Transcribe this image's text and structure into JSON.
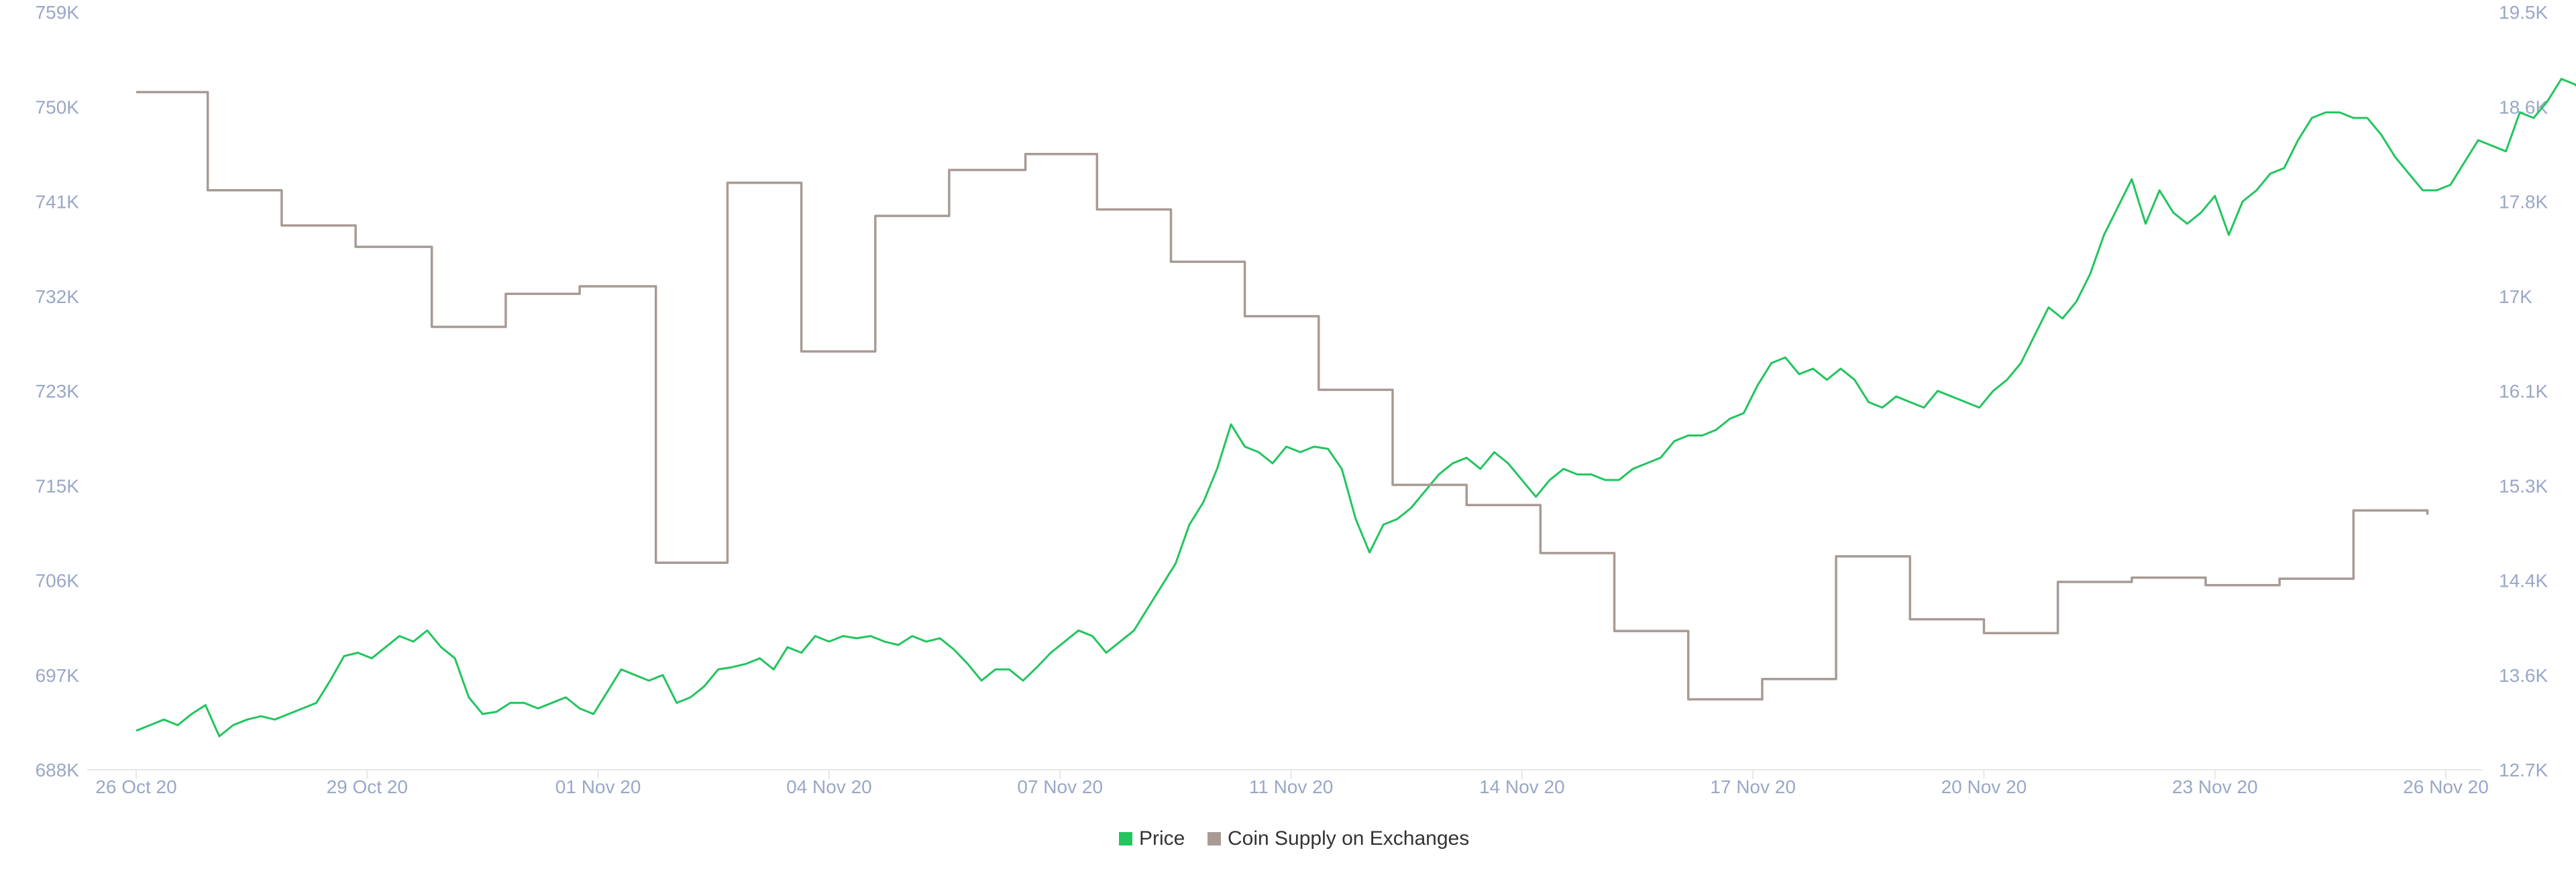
{
  "chart_data": {
    "type": "line",
    "title": "",
    "xlabel": "",
    "x_ticks": [
      "26 Oct 20",
      "29 Oct 20",
      "01 Nov 20",
      "04 Nov 20",
      "07 Nov 20",
      "11 Nov 20",
      "14 Nov 20",
      "17 Nov 20",
      "20 Nov 20",
      "23 Nov 20",
      "26 Nov 20"
    ],
    "y_left": {
      "label": "",
      "range": [
        688000,
        759000
      ],
      "ticks": [
        "688K",
        "697K",
        "706K",
        "715K",
        "723K",
        "732K",
        "741K",
        "750K",
        "759K"
      ]
    },
    "y_right": {
      "label": "",
      "range": [
        12700,
        19500
      ],
      "ticks": [
        "12.7K",
        "13.6K",
        "14.4K",
        "15.3K",
        "16.1K",
        "17K",
        "17.8K",
        "18.6K",
        "19.5K"
      ]
    },
    "grid": false,
    "legend_position": "bottom-center",
    "series": [
      {
        "name": "Price",
        "axis": "right",
        "color": "#22c55e",
        "points": [
          [
            0.0,
            13.05
          ],
          [
            0.06,
            13.1
          ],
          [
            0.12,
            13.15
          ],
          [
            0.18,
            13.1
          ],
          [
            0.24,
            13.2
          ],
          [
            0.3,
            13.28
          ],
          [
            0.36,
            13.0
          ],
          [
            0.42,
            13.1
          ],
          [
            0.48,
            13.15
          ],
          [
            0.54,
            13.18
          ],
          [
            0.6,
            13.15
          ],
          [
            0.66,
            13.2
          ],
          [
            0.72,
            13.25
          ],
          [
            0.78,
            13.3
          ],
          [
            0.84,
            13.5
          ],
          [
            0.9,
            13.72
          ],
          [
            0.96,
            13.75
          ],
          [
            1.02,
            13.7
          ],
          [
            1.08,
            13.8
          ],
          [
            1.14,
            13.9
          ],
          [
            1.2,
            13.85
          ],
          [
            1.26,
            13.95
          ],
          [
            1.32,
            13.8
          ],
          [
            1.38,
            13.7
          ],
          [
            1.44,
            13.35
          ],
          [
            1.5,
            13.2
          ],
          [
            1.56,
            13.22
          ],
          [
            1.62,
            13.3
          ],
          [
            1.68,
            13.3
          ],
          [
            1.74,
            13.25
          ],
          [
            1.8,
            13.3
          ],
          [
            1.86,
            13.35
          ],
          [
            1.92,
            13.25
          ],
          [
            1.98,
            13.2
          ],
          [
            2.04,
            13.4
          ],
          [
            2.1,
            13.6
          ],
          [
            2.16,
            13.55
          ],
          [
            2.22,
            13.5
          ],
          [
            2.28,
            13.55
          ],
          [
            2.34,
            13.3
          ],
          [
            2.4,
            13.35
          ],
          [
            2.46,
            13.45
          ],
          [
            2.52,
            13.6
          ],
          [
            2.58,
            13.62
          ],
          [
            2.64,
            13.65
          ],
          [
            2.7,
            13.7
          ],
          [
            2.76,
            13.6
          ],
          [
            2.82,
            13.8
          ],
          [
            2.88,
            13.75
          ],
          [
            2.94,
            13.9
          ],
          [
            3.0,
            13.85
          ],
          [
            3.06,
            13.9
          ],
          [
            3.12,
            13.88
          ],
          [
            3.18,
            13.9
          ],
          [
            3.24,
            13.85
          ],
          [
            3.3,
            13.82
          ],
          [
            3.36,
            13.9
          ],
          [
            3.42,
            13.85
          ],
          [
            3.48,
            13.88
          ],
          [
            3.54,
            13.78
          ],
          [
            3.6,
            13.65
          ],
          [
            3.66,
            13.5
          ],
          [
            3.72,
            13.6
          ],
          [
            3.78,
            13.6
          ],
          [
            3.84,
            13.5
          ],
          [
            3.9,
            13.62
          ],
          [
            3.96,
            13.75
          ],
          [
            4.02,
            13.85
          ],
          [
            4.08,
            13.95
          ],
          [
            4.14,
            13.9
          ],
          [
            4.2,
            13.75
          ],
          [
            4.26,
            13.85
          ],
          [
            4.32,
            13.95
          ],
          [
            4.38,
            14.15
          ],
          [
            4.44,
            14.35
          ],
          [
            4.5,
            14.55
          ],
          [
            4.56,
            14.9
          ],
          [
            4.62,
            15.1
          ],
          [
            4.68,
            15.4
          ],
          [
            4.74,
            15.8
          ],
          [
            4.8,
            15.6
          ],
          [
            4.86,
            15.55
          ],
          [
            4.92,
            15.45
          ],
          [
            4.98,
            15.6
          ],
          [
            5.04,
            15.55
          ],
          [
            5.1,
            15.6
          ],
          [
            5.16,
            15.58
          ],
          [
            5.22,
            15.4
          ],
          [
            5.28,
            14.95
          ],
          [
            5.34,
            14.65
          ],
          [
            5.4,
            14.9
          ],
          [
            5.46,
            14.95
          ],
          [
            5.52,
            15.05
          ],
          [
            5.58,
            15.2
          ],
          [
            5.64,
            15.35
          ],
          [
            5.7,
            15.45
          ],
          [
            5.76,
            15.5
          ],
          [
            5.82,
            15.4
          ],
          [
            5.88,
            15.55
          ],
          [
            5.94,
            15.45
          ],
          [
            6.0,
            15.3
          ],
          [
            6.06,
            15.15
          ],
          [
            6.12,
            15.3
          ],
          [
            6.18,
            15.4
          ],
          [
            6.24,
            15.35
          ],
          [
            6.3,
            15.35
          ],
          [
            6.36,
            15.3
          ],
          [
            6.42,
            15.3
          ],
          [
            6.48,
            15.4
          ],
          [
            6.54,
            15.45
          ],
          [
            6.6,
            15.5
          ],
          [
            6.66,
            15.65
          ],
          [
            6.72,
            15.7
          ],
          [
            6.78,
            15.7
          ],
          [
            6.84,
            15.75
          ],
          [
            6.9,
            15.85
          ],
          [
            6.96,
            15.9
          ],
          [
            7.02,
            16.15
          ],
          [
            7.08,
            16.35
          ],
          [
            7.14,
            16.4
          ],
          [
            7.2,
            16.25
          ],
          [
            7.26,
            16.3
          ],
          [
            7.32,
            16.2
          ],
          [
            7.38,
            16.3
          ],
          [
            7.44,
            16.2
          ],
          [
            7.5,
            16.0
          ],
          [
            7.56,
            15.95
          ],
          [
            7.62,
            16.05
          ],
          [
            7.68,
            16.0
          ],
          [
            7.74,
            15.95
          ],
          [
            7.8,
            16.1
          ],
          [
            7.86,
            16.05
          ],
          [
            7.92,
            16.0
          ],
          [
            7.98,
            15.95
          ],
          [
            8.04,
            16.1
          ],
          [
            8.1,
            16.2
          ],
          [
            8.16,
            16.35
          ],
          [
            8.22,
            16.6
          ],
          [
            8.28,
            16.85
          ],
          [
            8.34,
            16.75
          ],
          [
            8.4,
            16.9
          ],
          [
            8.46,
            17.15
          ],
          [
            8.52,
            17.5
          ],
          [
            8.58,
            17.75
          ],
          [
            8.64,
            18.0
          ],
          [
            8.7,
            17.6
          ],
          [
            8.76,
            17.9
          ],
          [
            8.82,
            17.7
          ],
          [
            8.88,
            17.6
          ],
          [
            8.94,
            17.7
          ],
          [
            9.0,
            17.85
          ],
          [
            9.06,
            17.5
          ],
          [
            9.12,
            17.8
          ],
          [
            9.18,
            17.9
          ],
          [
            9.24,
            18.05
          ],
          [
            9.3,
            18.1
          ],
          [
            9.36,
            18.35
          ],
          [
            9.42,
            18.55
          ],
          [
            9.48,
            18.6
          ],
          [
            9.54,
            18.6
          ],
          [
            9.6,
            18.55
          ],
          [
            9.66,
            18.55
          ],
          [
            9.72,
            18.4
          ],
          [
            9.78,
            18.2
          ],
          [
            9.84,
            18.05
          ],
          [
            9.9,
            17.9
          ],
          [
            9.96,
            17.9
          ],
          [
            10.02,
            17.95
          ],
          [
            10.08,
            18.15
          ],
          [
            10.14,
            18.35
          ],
          [
            10.2,
            18.3
          ],
          [
            10.26,
            18.25
          ],
          [
            10.32,
            18.6
          ],
          [
            10.38,
            18.55
          ],
          [
            10.44,
            18.7
          ],
          [
            10.5,
            18.9
          ],
          [
            10.56,
            18.85
          ],
          [
            10.62,
            18.7
          ],
          [
            10.68,
            18.6
          ],
          [
            10.74,
            18.65
          ],
          [
            10.8,
            18.15
          ]
        ]
      },
      {
        "name": "Coin Supply on Exchanges",
        "axis": "left",
        "color": "#a89a94",
        "points": [
          [
            0.0,
            751.5
          ],
          [
            0.31,
            751.5
          ],
          [
            0.31,
            742.3
          ],
          [
            0.63,
            742.3
          ],
          [
            0.63,
            739.0
          ],
          [
            0.95,
            739.0
          ],
          [
            0.95,
            737.0
          ],
          [
            1.28,
            737.0
          ],
          [
            1.28,
            729.5
          ],
          [
            1.6,
            729.5
          ],
          [
            1.6,
            732.6
          ],
          [
            1.92,
            732.6
          ],
          [
            1.92,
            733.3
          ],
          [
            2.25,
            733.3
          ],
          [
            2.25,
            707.4
          ],
          [
            2.56,
            707.4
          ],
          [
            2.56,
            743.0
          ],
          [
            2.88,
            743.0
          ],
          [
            2.88,
            727.2
          ],
          [
            3.2,
            727.2
          ],
          [
            3.2,
            739.9
          ],
          [
            3.52,
            739.9
          ],
          [
            3.52,
            744.2
          ],
          [
            3.85,
            744.2
          ],
          [
            3.85,
            745.7
          ],
          [
            4.16,
            745.7
          ],
          [
            4.16,
            740.5
          ],
          [
            4.48,
            740.5
          ],
          [
            4.48,
            735.6
          ],
          [
            4.8,
            735.6
          ],
          [
            4.8,
            730.5
          ],
          [
            5.12,
            730.5
          ],
          [
            5.12,
            723.6
          ],
          [
            5.44,
            723.6
          ],
          [
            5.44,
            714.7
          ],
          [
            5.76,
            714.7
          ],
          [
            5.76,
            712.8
          ],
          [
            6.08,
            712.8
          ],
          [
            6.08,
            708.3
          ],
          [
            6.4,
            708.3
          ],
          [
            6.4,
            701.0
          ],
          [
            6.72,
            701.0
          ],
          [
            6.72,
            694.6
          ],
          [
            7.04,
            694.6
          ],
          [
            7.04,
            696.5
          ],
          [
            7.36,
            696.5
          ],
          [
            7.36,
            708.0
          ],
          [
            7.68,
            708.0
          ],
          [
            7.68,
            702.1
          ],
          [
            8.0,
            702.1
          ],
          [
            8.0,
            700.8
          ],
          [
            8.32,
            700.8
          ],
          [
            8.32,
            705.6
          ],
          [
            8.64,
            705.6
          ],
          [
            8.64,
            706.0
          ],
          [
            8.96,
            706.0
          ],
          [
            8.96,
            705.3
          ],
          [
            9.28,
            705.3
          ],
          [
            9.28,
            705.9
          ],
          [
            9.6,
            705.9
          ],
          [
            9.6,
            712.3
          ],
          [
            9.92,
            712.3
          ],
          [
            9.92,
            711.9
          ]
        ]
      }
    ]
  },
  "legend": [
    {
      "label": "Price",
      "color": "#22c55e"
    },
    {
      "label": "Coin Supply on Exchanges",
      "color": "#a89a94"
    }
  ],
  "colors": {
    "axis_label": "#9aa7c7",
    "axis_line": "#e5e7eb",
    "price": "#22c55e",
    "supply": "#a89a94"
  }
}
